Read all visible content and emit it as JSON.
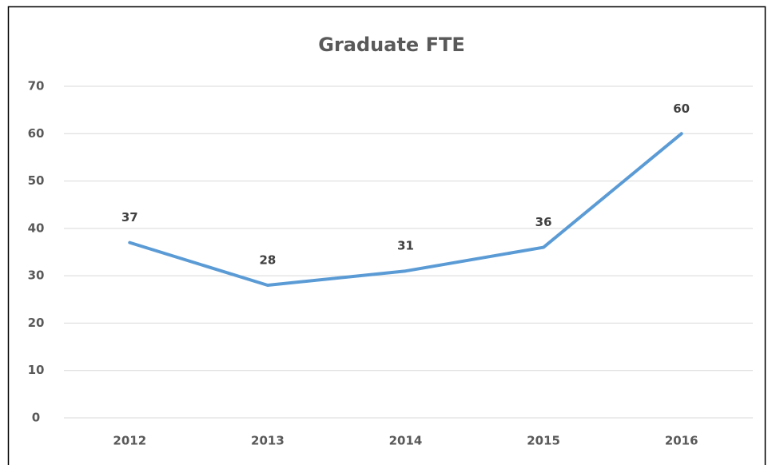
{
  "chart_data": {
    "type": "line",
    "title": "Graduate FTE",
    "categories": [
      "2012",
      "2013",
      "2014",
      "2015",
      "2016"
    ],
    "series": [
      {
        "name": "Graduate FTE",
        "color": "#5b9bd5",
        "values": [
          37,
          28,
          31,
          36,
          60
        ]
      }
    ],
    "ylim": [
      0,
      70
    ],
    "yticks": [
      0,
      10,
      20,
      30,
      40,
      50,
      60,
      70
    ],
    "grid": true
  }
}
